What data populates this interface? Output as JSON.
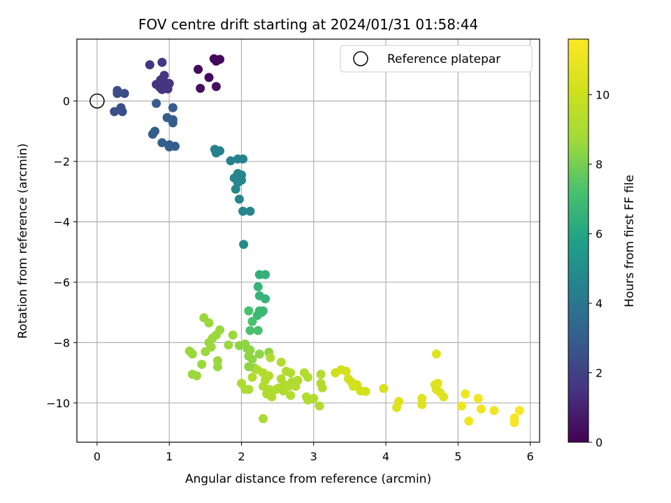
{
  "chart_data": {
    "type": "scatter",
    "title": "FOV centre drift starting at 2024/01/31 01:58:44",
    "xlabel": "Angular distance from reference (arcmin)",
    "ylabel": "Rotation from reference (arcmin)",
    "xlim": [
      -0.28,
      6.13
    ],
    "ylim": [
      -11.3,
      2.05
    ],
    "xticks": [
      0,
      1,
      2,
      3,
      4,
      5,
      6
    ],
    "yticks": [
      0,
      -2,
      -4,
      -6,
      -8,
      -10
    ],
    "grid": true,
    "legend": {
      "placement": "top-right",
      "entries": [
        "Reference platepar"
      ]
    },
    "reference_point": {
      "x": 0,
      "y": 0
    },
    "colorbar": {
      "label": "Hours from first FF file",
      "range": [
        0,
        11.6
      ],
      "ticks": [
        0,
        2,
        4,
        6,
        8,
        10
      ],
      "colormap": "viridis"
    },
    "points": [
      [
        1.4,
        1.05,
        0.3
      ],
      [
        1.55,
        0.78,
        0.3
      ],
      [
        1.65,
        1.32,
        0.2
      ],
      [
        1.62,
        1.4,
        0.2
      ],
      [
        1.7,
        1.38,
        0.2
      ],
      [
        1.43,
        0.42,
        0.4
      ],
      [
        1.65,
        0.48,
        0.4
      ],
      [
        0.73,
        1.2,
        1.6
      ],
      [
        0.9,
        1.28,
        1.6
      ],
      [
        0.82,
        0.55,
        1.6
      ],
      [
        0.88,
        0.7,
        1.6
      ],
      [
        0.93,
        0.85,
        1.6
      ],
      [
        0.95,
        0.6,
        1.6
      ],
      [
        0.87,
        0.45,
        1.6
      ],
      [
        0.98,
        0.4,
        1.6
      ],
      [
        1.0,
        0.58,
        1.6
      ],
      [
        0.9,
        0.38,
        1.6
      ],
      [
        0.92,
        0.5,
        1.6
      ],
      [
        0.28,
        0.35,
        2.4
      ],
      [
        0.28,
        0.25,
        2.4
      ],
      [
        0.38,
        0.25,
        2.4
      ],
      [
        0.33,
        -0.22,
        2.4
      ],
      [
        0.35,
        -0.35,
        2.4
      ],
      [
        0.24,
        -0.35,
        2.4
      ],
      [
        0.82,
        -0.08,
        3.0
      ],
      [
        0.97,
        -0.55,
        3.0
      ],
      [
        1.05,
        -0.22,
        3.0
      ],
      [
        1.05,
        -0.62,
        3.0
      ],
      [
        1.05,
        -0.72,
        3.0
      ],
      [
        0.8,
        -1.0,
        3.0
      ],
      [
        0.77,
        -1.1,
        3.0
      ],
      [
        0.9,
        -1.38,
        3.0
      ],
      [
        1.0,
        -1.45,
        3.0
      ],
      [
        1.08,
        -1.5,
        3.0
      ],
      [
        1.0,
        -1.52,
        3.0
      ],
      [
        1.63,
        -1.6,
        4.4
      ],
      [
        1.7,
        -1.65,
        4.4
      ],
      [
        1.65,
        -1.72,
        4.4
      ],
      [
        1.85,
        -1.98,
        4.4
      ],
      [
        1.95,
        -1.92,
        4.4
      ],
      [
        2.02,
        -1.92,
        4.4
      ],
      [
        1.95,
        -2.4,
        4.6
      ],
      [
        2.0,
        -2.45,
        4.6
      ],
      [
        1.9,
        -2.55,
        4.6
      ],
      [
        2.0,
        -2.62,
        4.6
      ],
      [
        1.95,
        -2.7,
        4.6
      ],
      [
        1.92,
        -2.92,
        4.6
      ],
      [
        1.97,
        -3.25,
        4.6
      ],
      [
        2.02,
        -3.65,
        4.6
      ],
      [
        2.12,
        -3.65,
        4.6
      ],
      [
        2.03,
        -4.75,
        4.8
      ],
      [
        2.25,
        -5.75,
        6.5
      ],
      [
        2.33,
        -5.75,
        6.5
      ],
      [
        2.23,
        -6.15,
        6.6
      ],
      [
        2.25,
        -6.45,
        6.6
      ],
      [
        2.33,
        -6.55,
        6.6
      ],
      [
        2.25,
        -6.95,
        6.8
      ],
      [
        2.28,
        -7.0,
        6.8
      ],
      [
        2.22,
        -7.1,
        6.8
      ],
      [
        2.3,
        -6.95,
        6.8
      ],
      [
        2.1,
        -6.95,
        7.2
      ],
      [
        2.15,
        -7.3,
        7.2
      ],
      [
        2.12,
        -7.6,
        7.2
      ],
      [
        2.23,
        -7.6,
        7.2
      ],
      [
        1.48,
        -7.18,
        8.6
      ],
      [
        1.55,
        -7.35,
        8.6
      ],
      [
        1.7,
        -7.58,
        8.6
      ],
      [
        1.65,
        -7.75,
        8.6
      ],
      [
        1.6,
        -7.85,
        8.6
      ],
      [
        1.55,
        -8.0,
        8.6
      ],
      [
        1.58,
        -8.15,
        8.6
      ],
      [
        1.5,
        -8.3,
        8.6
      ],
      [
        1.28,
        -8.28,
        8.6
      ],
      [
        1.32,
        -8.38,
        8.6
      ],
      [
        1.45,
        -8.72,
        8.6
      ],
      [
        1.67,
        -8.6,
        8.6
      ],
      [
        1.67,
        -8.8,
        8.6
      ],
      [
        1.32,
        -9.05,
        8.6
      ],
      [
        1.38,
        -9.1,
        8.6
      ],
      [
        1.82,
        -8.08,
        8.6
      ],
      [
        1.88,
        -7.75,
        8.6
      ],
      [
        1.97,
        -8.1,
        8.4
      ],
      [
        2.05,
        -8.05,
        8.4
      ],
      [
        2.08,
        -8.2,
        8.4
      ],
      [
        2.12,
        -8.25,
        8.4
      ],
      [
        2.1,
        -8.45,
        8.4
      ],
      [
        2.15,
        -8.55,
        8.4
      ],
      [
        2.1,
        -8.8,
        8.4
      ],
      [
        2.18,
        -8.85,
        8.4
      ],
      [
        2.25,
        -8.38,
        8.4
      ],
      [
        2.38,
        -8.32,
        8.4
      ],
      [
        2.4,
        -8.5,
        9.2
      ],
      [
        2.22,
        -8.9,
        9.2
      ],
      [
        2.15,
        -9.15,
        9.2
      ],
      [
        2.3,
        -9.0,
        9.2
      ],
      [
        2.33,
        -9.25,
        9.2
      ],
      [
        2.38,
        -9.1,
        9.2
      ],
      [
        2.3,
        -9.45,
        9.2
      ],
      [
        2.38,
        -9.55,
        9.2
      ],
      [
        2.35,
        -9.7,
        9.2
      ],
      [
        2.42,
        -9.8,
        9.2
      ],
      [
        2.4,
        -9.6,
        9.2
      ],
      [
        2.48,
        -9.55,
        9.2
      ],
      [
        2.55,
        -9.2,
        9.2
      ],
      [
        2.52,
        -9.5,
        9.2
      ],
      [
        2.58,
        -9.6,
        9.2
      ],
      [
        2.6,
        -9.4,
        9.2
      ],
      [
        2.55,
        -8.65,
        9.2
      ],
      [
        2.62,
        -8.95,
        9.2
      ],
      [
        2.68,
        -9.0,
        9.2
      ],
      [
        2.65,
        -9.45,
        9.2
      ],
      [
        2.7,
        -9.3,
        9.2
      ],
      [
        2.68,
        -9.75,
        9.2
      ],
      [
        2.78,
        -9.25,
        9.2
      ],
      [
        2.75,
        -9.45,
        9.2
      ],
      [
        2.87,
        -9.0,
        9.2
      ],
      [
        2.92,
        -9.15,
        9.2
      ],
      [
        2.9,
        -9.8,
        9.2
      ],
      [
        2.92,
        -9.9,
        9.2
      ],
      [
        3.0,
        -9.85,
        9.2
      ],
      [
        3.1,
        -9.05,
        9.2
      ],
      [
        3.1,
        -9.35,
        9.2
      ],
      [
        3.12,
        -9.5,
        9.2
      ],
      [
        3.08,
        -10.1,
        9.2
      ],
      [
        2.0,
        -9.35,
        9.0
      ],
      [
        2.05,
        -9.55,
        9.0
      ],
      [
        2.1,
        -9.55,
        9.0
      ],
      [
        2.3,
        -10.52,
        9.0
      ],
      [
        3.3,
        -9.0,
        10.2
      ],
      [
        3.38,
        -8.9,
        10.2
      ],
      [
        3.45,
        -8.95,
        10.2
      ],
      [
        3.48,
        -9.2,
        10.2
      ],
      [
        3.52,
        -9.3,
        10.2
      ],
      [
        3.55,
        -9.45,
        10.2
      ],
      [
        3.6,
        -9.4,
        10.2
      ],
      [
        3.65,
        -9.6,
        10.2
      ],
      [
        3.72,
        -9.62,
        10.2
      ],
      [
        3.97,
        -9.52,
        10.4
      ],
      [
        4.15,
        -10.15,
        10.6
      ],
      [
        4.18,
        -9.95,
        10.6
      ],
      [
        4.5,
        -9.85,
        10.6
      ],
      [
        4.5,
        -10.05,
        10.6
      ],
      [
        4.68,
        -9.4,
        10.6
      ],
      [
        4.7,
        -9.55,
        10.6
      ],
      [
        4.72,
        -9.35,
        10.6
      ],
      [
        4.75,
        -9.65,
        10.6
      ],
      [
        4.8,
        -9.8,
        10.6
      ],
      [
        4.7,
        -8.38,
        10.6
      ],
      [
        5.05,
        -10.1,
        11.2
      ],
      [
        5.1,
        -9.7,
        11.2
      ],
      [
        5.15,
        -10.6,
        11.2
      ],
      [
        5.28,
        -9.85,
        11.2
      ],
      [
        5.32,
        -10.2,
        11.2
      ],
      [
        5.5,
        -10.25,
        11.2
      ],
      [
        5.78,
        -10.5,
        11.4
      ],
      [
        5.78,
        -10.65,
        11.4
      ],
      [
        5.85,
        -10.25,
        11.4
      ]
    ]
  }
}
